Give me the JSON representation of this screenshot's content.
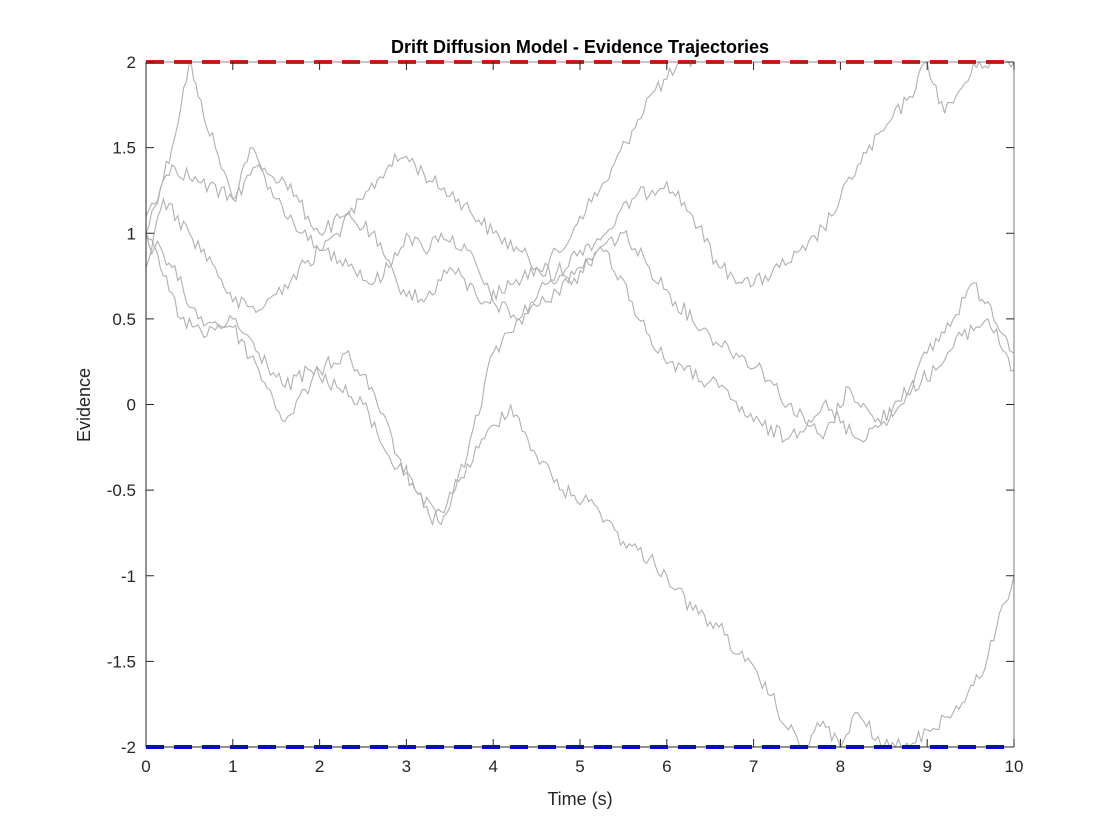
{
  "chart_data": {
    "type": "line",
    "title": "Drift Diffusion Model - Evidence Trajectories",
    "xlabel": "Time (s)",
    "ylabel": "Evidence",
    "xlim": [
      0,
      10
    ],
    "ylim": [
      -2,
      2
    ],
    "xticks": [
      0,
      1,
      2,
      3,
      4,
      5,
      6,
      7,
      8,
      9,
      10
    ],
    "yticks": [
      -2,
      -1.5,
      -1,
      -0.5,
      0,
      0.5,
      1,
      1.5,
      2
    ],
    "xtick_labels": [
      "0",
      "1",
      "2",
      "3",
      "4",
      "5",
      "6",
      "7",
      "8",
      "9",
      "10"
    ],
    "ytick_labels": [
      "-2",
      "-1.5",
      "-1",
      "-0.5",
      "0",
      "0.5",
      "1",
      "1.5",
      "2"
    ],
    "grid": false,
    "legend": "none",
    "thresholds": [
      {
        "y": 2,
        "color": "#e41a1c",
        "style": "dashed"
      },
      {
        "y": -2,
        "color": "#0000ff",
        "style": "dashed"
      }
    ],
    "trajectory_color": "#b0b0b0",
    "series": [
      {
        "x": [
          0,
          0.3,
          0.5,
          0.6,
          0.8,
          1.0,
          1.2,
          1.5,
          1.8,
          2.0,
          2.2,
          2.5,
          2.8,
          3.0,
          3.3,
          3.6,
          4.0,
          4.3,
          4.5,
          4.8,
          5.0,
          5.3,
          5.6,
          5.8,
          6.0,
          6.2,
          6.3
        ],
        "values": [
          1.0,
          1.5,
          2.0,
          1.8,
          1.5,
          1.2,
          1.5,
          1.2,
          1.0,
          0.9,
          1.0,
          1.2,
          1.4,
          1.45,
          1.3,
          1.2,
          1.0,
          0.9,
          0.8,
          0.9,
          1.1,
          1.3,
          1.6,
          1.8,
          1.9,
          2.0,
          2.0
        ]
      },
      {
        "x": [
          0,
          0.2,
          0.5,
          0.8,
          1.0,
          1.3,
          1.6,
          2.0,
          2.3,
          2.6,
          2.8,
          3.0,
          3.2,
          3.4,
          3.7,
          4.0,
          4.3,
          4.6,
          5.0,
          5.3,
          5.6,
          6.0,
          6.3,
          6.6,
          7.0,
          7.3,
          7.6,
          7.9,
          8.2,
          8.5,
          8.8,
          9.0,
          9.2,
          9.4,
          9.6,
          9.8,
          10.0
        ],
        "values": [
          0.8,
          1.2,
          1.0,
          0.8,
          0.6,
          0.55,
          0.7,
          0.9,
          0.85,
          0.7,
          0.8,
          1.0,
          0.9,
          1.0,
          0.9,
          0.6,
          0.5,
          0.7,
          0.9,
          1.0,
          1.2,
          1.3,
          1.1,
          0.8,
          0.7,
          0.8,
          0.9,
          1.1,
          1.4,
          1.6,
          1.8,
          2.0,
          1.7,
          1.85,
          2.0,
          2.0,
          2.0
        ]
      },
      {
        "x": [
          0,
          0.3,
          0.6,
          1.0,
          1.3,
          1.6,
          2.0,
          2.3,
          2.6,
          2.9,
          3.2,
          3.5,
          3.9,
          4.2,
          4.5,
          4.9,
          5.2,
          5.5,
          5.8,
          6.1,
          6.5,
          6.8,
          7.1,
          7.4,
          7.8,
          8.1,
          8.4,
          8.7,
          9.0,
          9.3,
          9.5,
          9.7,
          9.9,
          10.0
        ],
        "values": [
          1.1,
          1.4,
          1.3,
          1.2,
          1.4,
          1.3,
          1.0,
          1.1,
          1.0,
          0.7,
          0.6,
          0.8,
          0.6,
          0.7,
          0.8,
          0.7,
          0.9,
          1.0,
          0.8,
          0.6,
          0.4,
          0.3,
          0.2,
          0.0,
          -0.2,
          0.1,
          -0.1,
          0.0,
          0.3,
          0.5,
          0.7,
          0.6,
          0.4,
          0.3
        ]
      },
      {
        "x": [
          0,
          0.4,
          0.7,
          1.0,
          1.3,
          1.6,
          1.9,
          2.2,
          2.5,
          2.8,
          3.1,
          3.4,
          3.7,
          4.0,
          4.3,
          4.6,
          5.0,
          5.3,
          5.6,
          5.9,
          6.2,
          6.6,
          7.0,
          7.4,
          7.8,
          8.2,
          8.5,
          8.8,
          9.1,
          9.4,
          9.7,
          10.0
        ],
        "values": [
          1.0,
          0.5,
          0.4,
          0.5,
          0.3,
          0.1,
          0.2,
          0.1,
          0.0,
          -0.3,
          -0.5,
          -0.7,
          -0.3,
          0.3,
          0.5,
          0.6,
          0.8,
          0.9,
          0.6,
          0.3,
          0.2,
          0.1,
          -0.1,
          -0.2,
          0.0,
          -0.2,
          -0.1,
          0.1,
          0.2,
          0.4,
          0.5,
          0.2
        ]
      },
      {
        "x": [
          0,
          0.3,
          0.6,
          1.0,
          1.3,
          1.6,
          2.0,
          2.3,
          2.6,
          2.9,
          3.1,
          3.3,
          3.6,
          3.9,
          4.2,
          4.5,
          4.8,
          5.2,
          5.5,
          5.8,
          6.0,
          6.3,
          6.6,
          6.9,
          7.2,
          7.4,
          7.6,
          7.8,
          8.0,
          8.2,
          8.5,
          8.8,
          9.0,
          9.3,
          9.6,
          9.8,
          10.0
        ],
        "values": [
          1.0,
          0.8,
          0.5,
          0.45,
          0.2,
          -0.1,
          0.2,
          0.3,
          0.1,
          -0.3,
          -0.5,
          -0.7,
          -0.45,
          -0.2,
          0.0,
          -0.3,
          -0.5,
          -0.6,
          -0.8,
          -0.9,
          -1.0,
          -1.2,
          -1.3,
          -1.5,
          -1.7,
          -1.9,
          -2.0,
          -1.85,
          -2.0,
          -1.8,
          -2.0,
          -2.0,
          -1.9,
          -1.8,
          -1.6,
          -1.3,
          -1.0
        ]
      }
    ]
  }
}
